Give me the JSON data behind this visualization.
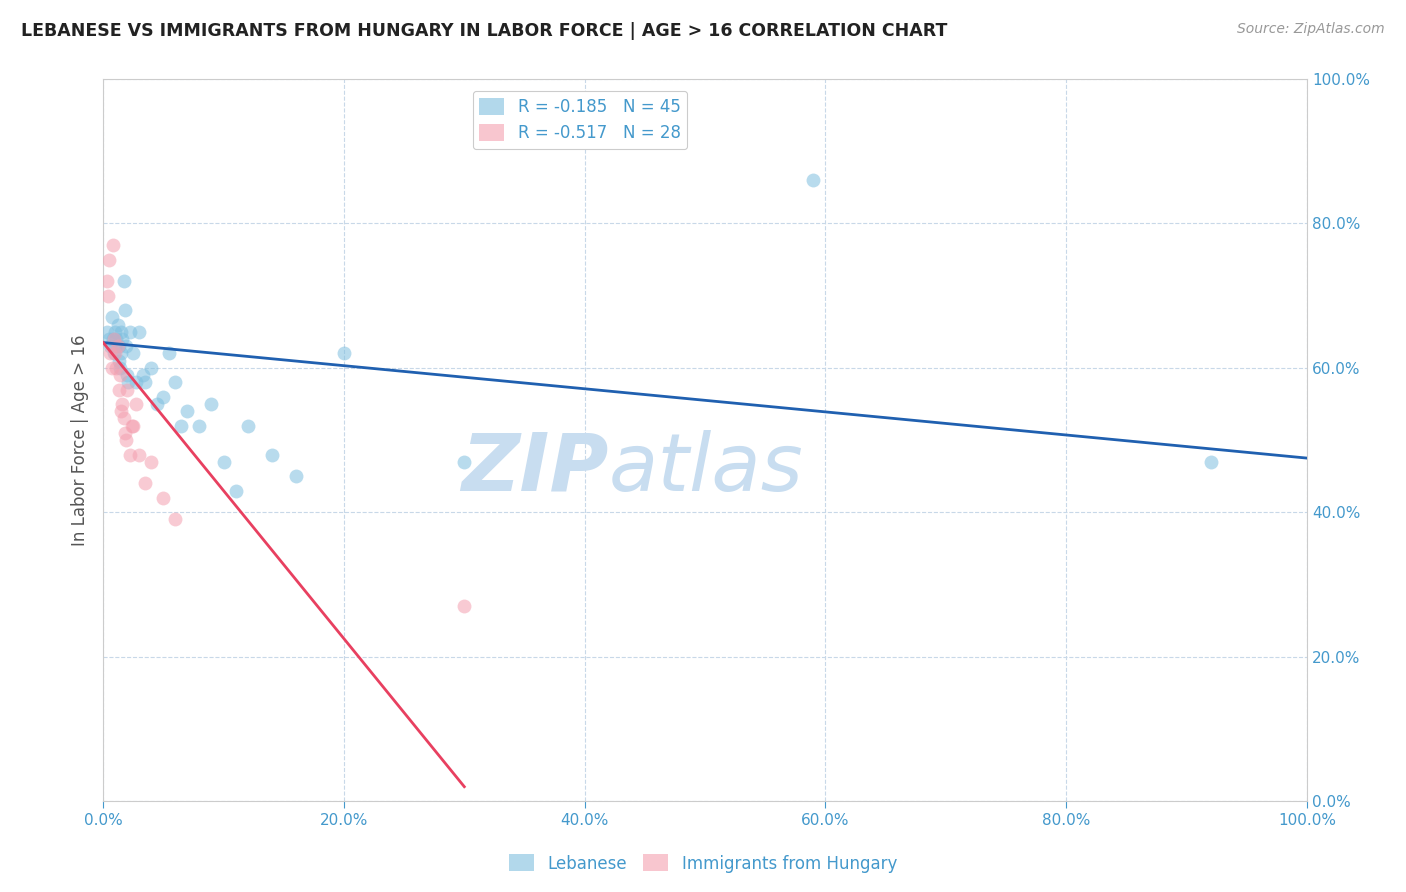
{
  "title": "LEBANESE VS IMMIGRANTS FROM HUNGARY IN LABOR FORCE | AGE > 16 CORRELATION CHART",
  "source": "Source: ZipAtlas.com",
  "ylabel": "In Labor Force | Age > 16",
  "xlim": [
    0.0,
    1.0
  ],
  "ylim": [
    0.0,
    1.0
  ],
  "xticks": [
    0.0,
    0.2,
    0.4,
    0.6,
    0.8,
    1.0
  ],
  "yticks": [
    0.0,
    0.2,
    0.4,
    0.6,
    0.8,
    1.0
  ],
  "xticklabels": [
    "0.0%",
    "20.0%",
    "40.0%",
    "60.0%",
    "80.0%",
    "100.0%"
  ],
  "yticklabels": [
    "0.0%",
    "20.0%",
    "40.0%",
    "60.0%",
    "80.0%",
    "100.0%"
  ],
  "background_color": "#ffffff",
  "grid_color": "#c8d8e8",
  "watermark_zip": "ZIP",
  "watermark_atlas": "atlas",
  "watermark_color": "#c8ddf0",
  "blue_color": "#7fbfdf",
  "pink_color": "#f4a0b0",
  "blue_line_color": "#2060b0",
  "pink_line_color": "#e84060",
  "tick_color": "#4499cc",
  "legend_r1": "R = -0.185",
  "legend_n1": "N = 45",
  "legend_r2": "R = -0.517",
  "legend_n2": "N = 28",
  "blue_scatter_x": [
    0.003,
    0.005,
    0.006,
    0.007,
    0.008,
    0.009,
    0.01,
    0.01,
    0.011,
    0.012,
    0.013,
    0.013,
    0.014,
    0.015,
    0.015,
    0.016,
    0.017,
    0.018,
    0.019,
    0.02,
    0.021,
    0.022,
    0.025,
    0.027,
    0.03,
    0.033,
    0.035,
    0.04,
    0.045,
    0.05,
    0.055,
    0.06,
    0.065,
    0.07,
    0.08,
    0.09,
    0.1,
    0.11,
    0.12,
    0.14,
    0.16,
    0.2,
    0.3,
    0.59,
    0.92
  ],
  "blue_scatter_y": [
    0.65,
    0.64,
    0.63,
    0.67,
    0.64,
    0.62,
    0.63,
    0.65,
    0.64,
    0.66,
    0.63,
    0.61,
    0.6,
    0.65,
    0.62,
    0.64,
    0.72,
    0.68,
    0.63,
    0.59,
    0.58,
    0.65,
    0.62,
    0.58,
    0.65,
    0.59,
    0.58,
    0.6,
    0.55,
    0.56,
    0.62,
    0.58,
    0.52,
    0.54,
    0.52,
    0.55,
    0.47,
    0.43,
    0.52,
    0.48,
    0.45,
    0.62,
    0.47,
    0.86,
    0.47
  ],
  "pink_scatter_x": [
    0.003,
    0.004,
    0.005,
    0.006,
    0.007,
    0.008,
    0.009,
    0.01,
    0.011,
    0.012,
    0.013,
    0.014,
    0.015,
    0.016,
    0.017,
    0.018,
    0.019,
    0.02,
    0.022,
    0.024,
    0.025,
    0.027,
    0.03,
    0.035,
    0.04,
    0.05,
    0.06,
    0.3
  ],
  "pink_scatter_y": [
    0.72,
    0.7,
    0.75,
    0.62,
    0.6,
    0.77,
    0.64,
    0.62,
    0.6,
    0.63,
    0.57,
    0.59,
    0.54,
    0.55,
    0.53,
    0.51,
    0.5,
    0.57,
    0.48,
    0.52,
    0.52,
    0.55,
    0.48,
    0.44,
    0.47,
    0.42,
    0.39,
    0.27
  ],
  "blue_line_x": [
    0.0,
    1.0
  ],
  "blue_line_y_start": 0.635,
  "blue_line_y_end": 0.475,
  "pink_line_x_start": 0.0,
  "pink_line_x_end": 0.3,
  "pink_line_y_start": 0.635,
  "pink_line_y_end": 0.02
}
